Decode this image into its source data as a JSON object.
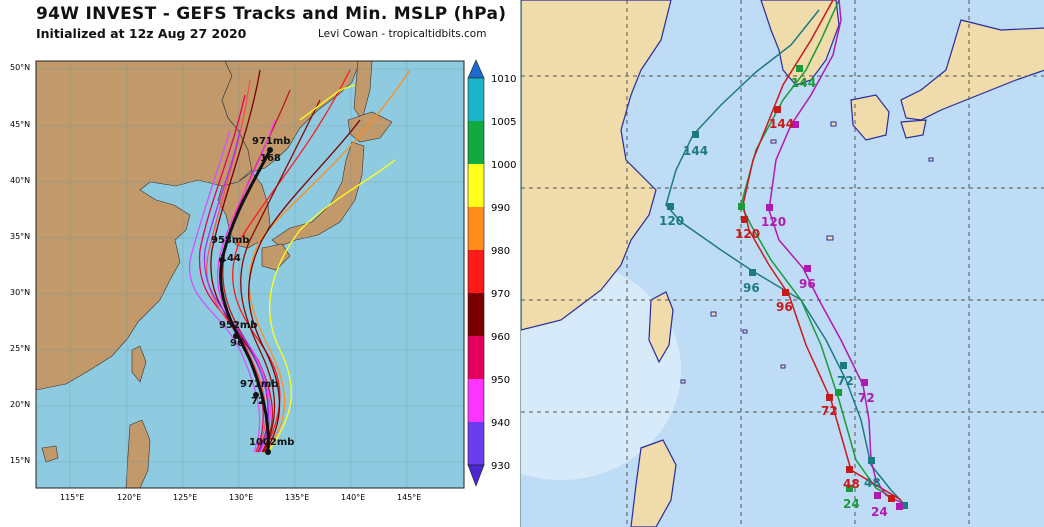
{
  "left_panel": {
    "title": "94W INVEST - GEFS Tracks and Min. MSLP (hPa)",
    "subtitle": "Initialized at 12z Aug 27 2020",
    "credit": "Levi Cowan - tropicaltidbits.com",
    "lat_labels": [
      "50°N",
      "45°N",
      "40°N",
      "35°N",
      "30°N",
      "25°N",
      "20°N",
      "15°N"
    ],
    "lon_labels": [
      "115°E",
      "120°E",
      "125°E",
      "130°E",
      "135°E",
      "140°E",
      "145°E"
    ],
    "colorbar": {
      "ticks": [
        "1010",
        "1005",
        "1000",
        "990",
        "980",
        "970",
        "960",
        "950",
        "940",
        "930"
      ],
      "colors": [
        "#1ab5c8",
        "#10aa40",
        "#ffff1a",
        "#ff8c1a",
        "#ff1a1a",
        "#7a0000",
        "#e6005c",
        "#ff33ff",
        "#6a3df0"
      ]
    },
    "mean_track_labels": [
      {
        "label": "971mb",
        "hour": "168"
      },
      {
        "label": "958mb",
        "hour": "144"
      },
      {
        "label": "952mb",
        "hour": "96"
      },
      {
        "label": "971mb",
        "hour": "72"
      },
      {
        "label": "1002mb",
        "hour": ""
      }
    ]
  },
  "right_panel": {
    "hour_labels": [
      "144",
      "144",
      "144",
      "120",
      "120",
      "120",
      "96",
      "96",
      "96",
      "72",
      "72",
      "72",
      "48",
      "48",
      "24",
      "24"
    ],
    "colors": {
      "teal": "#1e7a82",
      "green": "#1a9a3a",
      "red": "#c81a1a",
      "purple": "#b01ab0"
    }
  }
}
